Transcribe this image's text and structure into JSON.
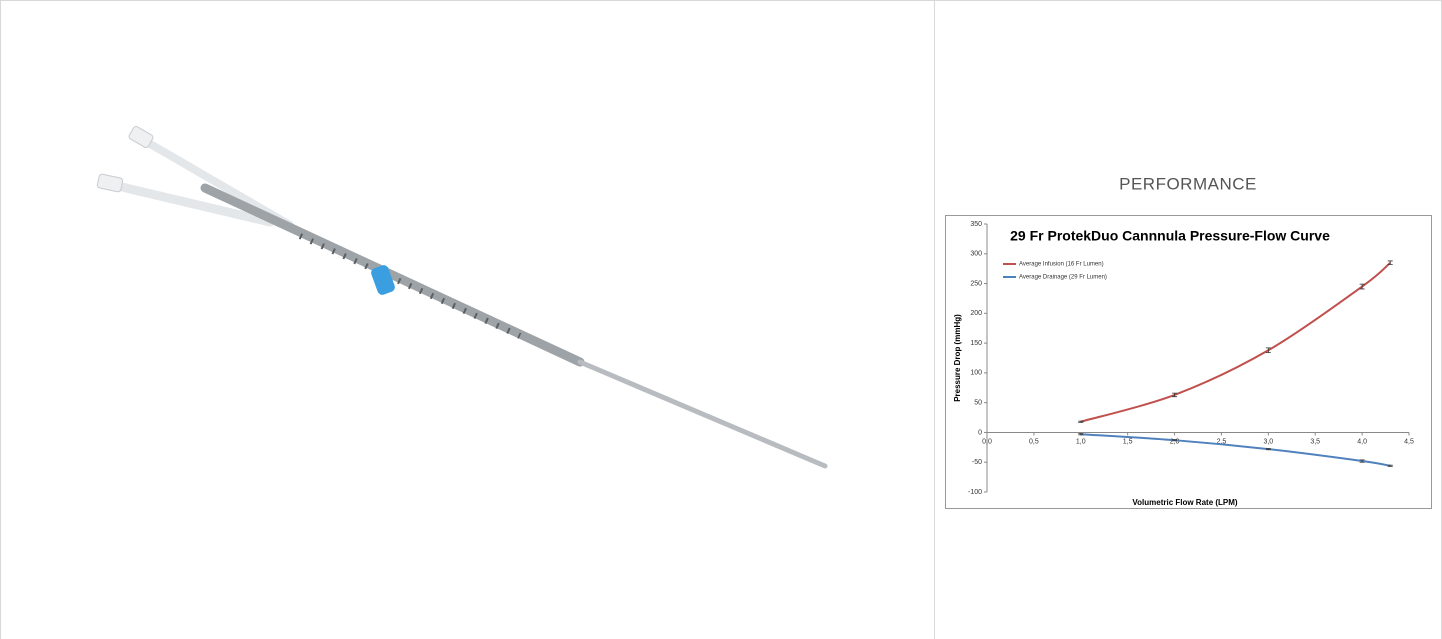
{
  "heading": "PERFORMANCE",
  "chart_data": {
    "type": "line",
    "title": "29 Fr ProtekDuo Cannnula Pressure-Flow Curve",
    "x_label": "Volumetric Flow Rate (LPM)",
    "y_label": "Pressure Drop (mmHg)",
    "x": [
      1,
      2,
      3,
      4,
      4.3
    ],
    "series": [
      {
        "name": "Average Infusion (16 Fr Lumen)",
        "color": "#c0504d",
        "values": [
          18,
          63,
          138,
          245,
          285
        ],
        "errors": [
          1,
          3,
          4,
          4,
          3
        ]
      },
      {
        "name": "Average Drainage (29 Fr Lumen)",
        "color": "#4f81bd",
        "values": [
          -3,
          -13,
          -28,
          -48,
          -56
        ],
        "errors": [
          1,
          1,
          1,
          2,
          1
        ]
      }
    ],
    "xlim": [
      0,
      4.5
    ],
    "xticks": [
      {
        "value": 0,
        "label": "0,0"
      },
      {
        "value": 0.5,
        "label": "0,5"
      },
      {
        "value": 1,
        "label": "1,0"
      },
      {
        "value": 1.5,
        "label": "1,5"
      },
      {
        "value": 2,
        "label": "2,0"
      },
      {
        "value": 2.5,
        "label": "2,5"
      },
      {
        "value": 3,
        "label": "3,0"
      },
      {
        "value": 3.5,
        "label": "3,5"
      },
      {
        "value": 4,
        "label": "4,0"
      },
      {
        "value": 4.5,
        "label": "4,5"
      }
    ],
    "ylim": [
      -100,
      350
    ],
    "yticks": [
      -100,
      -50,
      0,
      50,
      100,
      150,
      200,
      250,
      300,
      350
    ],
    "legend": "upper left"
  }
}
